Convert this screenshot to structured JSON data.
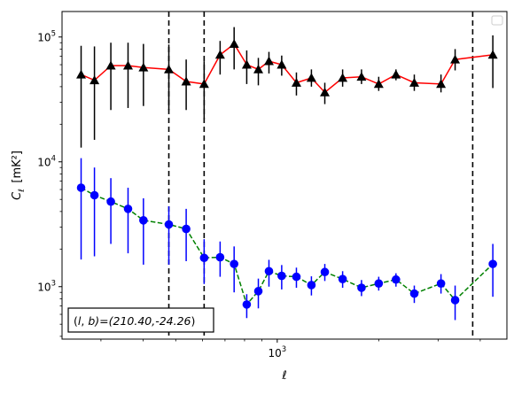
{
  "chart_data": {
    "type": "line",
    "title": "",
    "xlabel": "ℓ",
    "ylabel": "C_ℓ [mK²]",
    "xscale": "log",
    "yscale": "log",
    "xlim": [
      230,
      4800
    ],
    "ylim": [
      380,
      160000
    ],
    "grid": false,
    "legend": "top-right (empty)",
    "annotation": "(l, b)=(210.40,-24.26)",
    "x_ticks": [
      {
        "value": 1000,
        "label": "10^3"
      }
    ],
    "y_ticks": [
      {
        "value": 1000,
        "label": "10^3"
      },
      {
        "value": 10000,
        "label": "10^4"
      },
      {
        "value": 100000,
        "label": "10^5"
      }
    ],
    "vlines": [
      477,
      607,
      3800
    ],
    "series": [
      {
        "color": "#ff0000",
        "marker": "triangle",
        "marker_color": "#000000",
        "errbar_color": "#000000",
        "line_style": "solid",
        "points": [
          {
            "x": 262,
            "y": 50000,
            "lo": 13000,
            "hi": 85000
          },
          {
            "x": 287,
            "y": 45000,
            "lo": 15000,
            "hi": 84000
          },
          {
            "x": 321,
            "y": 59000,
            "lo": 26000,
            "hi": 90000
          },
          {
            "x": 361,
            "y": 59000,
            "lo": 27000,
            "hi": 90000
          },
          {
            "x": 401,
            "y": 57000,
            "lo": 28000,
            "hi": 88000
          },
          {
            "x": 477,
            "y": 55000,
            "lo": 26000,
            "hi": 87000
          },
          {
            "x": 537,
            "y": 44000,
            "lo": 26000,
            "hi": 66000
          },
          {
            "x": 607,
            "y": 42000,
            "lo": 22000,
            "hi": 64000
          },
          {
            "x": 677,
            "y": 72000,
            "lo": 50000,
            "hi": 93000
          },
          {
            "x": 745,
            "y": 88000,
            "lo": 55000,
            "hi": 120000
          },
          {
            "x": 812,
            "y": 60000,
            "lo": 42000,
            "hi": 78000
          },
          {
            "x": 879,
            "y": 55000,
            "lo": 41000,
            "hi": 68000
          },
          {
            "x": 945,
            "y": 64000,
            "lo": 51000,
            "hi": 76000
          },
          {
            "x": 1031,
            "y": 60000,
            "lo": 49000,
            "hi": 71000
          },
          {
            "x": 1140,
            "y": 43000,
            "lo": 34000,
            "hi": 52000
          },
          {
            "x": 1263,
            "y": 47000,
            "lo": 40000,
            "hi": 55000
          },
          {
            "x": 1384,
            "y": 36000,
            "lo": 29000,
            "hi": 43000
          },
          {
            "x": 1563,
            "y": 47000,
            "lo": 40000,
            "hi": 55000
          },
          {
            "x": 1778,
            "y": 48000,
            "lo": 42000,
            "hi": 55000
          },
          {
            "x": 2000,
            "y": 42000,
            "lo": 37000,
            "hi": 48000
          },
          {
            "x": 2250,
            "y": 50000,
            "lo": 45000,
            "hi": 55000
          },
          {
            "x": 2550,
            "y": 43000,
            "lo": 37000,
            "hi": 50000
          },
          {
            "x": 3060,
            "y": 42000,
            "lo": 36000,
            "hi": 50000
          },
          {
            "x": 3370,
            "y": 66000,
            "lo": 54000,
            "hi": 80000
          },
          {
            "x": 4360,
            "y": 72000,
            "lo": 39000,
            "hi": 103000
          }
        ]
      },
      {
        "color": "#008000",
        "marker": "circle",
        "marker_color": "#0000ff",
        "errbar_color": "#0000ff",
        "line_style": "dashed",
        "points": [
          {
            "x": 262,
            "y": 6200,
            "lo": 1650,
            "hi": 10700
          },
          {
            "x": 287,
            "y": 5400,
            "lo": 1750,
            "hi": 9000
          },
          {
            "x": 321,
            "y": 4800,
            "lo": 2200,
            "hi": 7400
          },
          {
            "x": 361,
            "y": 4200,
            "lo": 1850,
            "hi": 6200
          },
          {
            "x": 401,
            "y": 3400,
            "lo": 1500,
            "hi": 5100
          },
          {
            "x": 477,
            "y": 3150,
            "lo": 1500,
            "hi": 4400
          },
          {
            "x": 537,
            "y": 2900,
            "lo": 1600,
            "hi": 4200
          },
          {
            "x": 607,
            "y": 1700,
            "lo": 1050,
            "hi": 2400
          },
          {
            "x": 677,
            "y": 1720,
            "lo": 1200,
            "hi": 2300
          },
          {
            "x": 745,
            "y": 1520,
            "lo": 900,
            "hi": 2100
          },
          {
            "x": 812,
            "y": 720,
            "lo": 560,
            "hi": 870
          },
          {
            "x": 879,
            "y": 920,
            "lo": 670,
            "hi": 1160
          },
          {
            "x": 945,
            "y": 1330,
            "lo": 1000,
            "hi": 1640
          },
          {
            "x": 1031,
            "y": 1220,
            "lo": 950,
            "hi": 1490
          },
          {
            "x": 1140,
            "y": 1200,
            "lo": 980,
            "hi": 1420
          },
          {
            "x": 1263,
            "y": 1030,
            "lo": 850,
            "hi": 1210
          },
          {
            "x": 1384,
            "y": 1310,
            "lo": 1110,
            "hi": 1520
          },
          {
            "x": 1563,
            "y": 1150,
            "lo": 980,
            "hi": 1330
          },
          {
            "x": 1778,
            "y": 980,
            "lo": 840,
            "hi": 1130
          },
          {
            "x": 2000,
            "y": 1060,
            "lo": 930,
            "hi": 1200
          },
          {
            "x": 2250,
            "y": 1140,
            "lo": 1000,
            "hi": 1280
          },
          {
            "x": 2550,
            "y": 880,
            "lo": 740,
            "hi": 1020
          },
          {
            "x": 3060,
            "y": 1060,
            "lo": 880,
            "hi": 1260
          },
          {
            "x": 3370,
            "y": 780,
            "lo": 540,
            "hi": 1020
          },
          {
            "x": 4360,
            "y": 1520,
            "lo": 830,
            "hi": 2200
          }
        ]
      }
    ]
  }
}
